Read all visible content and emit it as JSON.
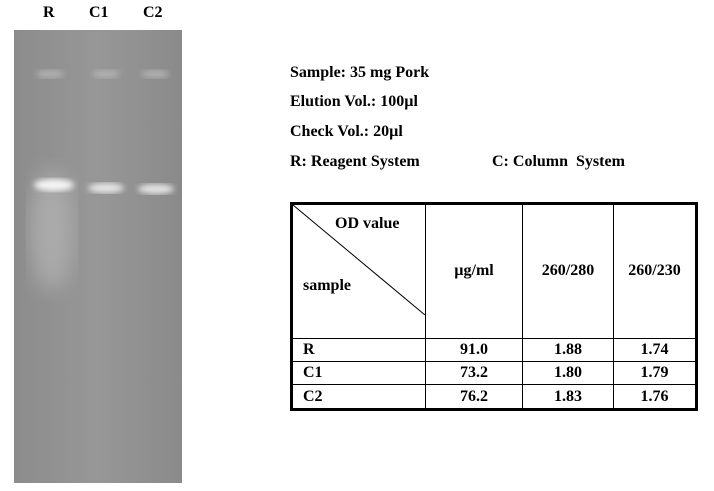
{
  "gel": {
    "lanes": [
      "R",
      "C1",
      "C2"
    ]
  },
  "info": {
    "sample": "Sample: 35 mg Pork",
    "elution": "Elution Vol.: 100µl",
    "check": "Check Vol.: 20µl",
    "legend_r": "R: Reagent System",
    "legend_c": "C: Column  System"
  },
  "table": {
    "corner_top": "OD value",
    "corner_bottom": "sample",
    "columns": [
      "µg/ml",
      "260/280",
      "260/230"
    ],
    "rows": [
      [
        "R",
        "91.0",
        "1.88",
        "1.74"
      ],
      [
        "C1",
        "73.2",
        "1.80",
        "1.79"
      ],
      [
        "C2",
        "76.2",
        "1.83",
        "1.76"
      ]
    ]
  }
}
